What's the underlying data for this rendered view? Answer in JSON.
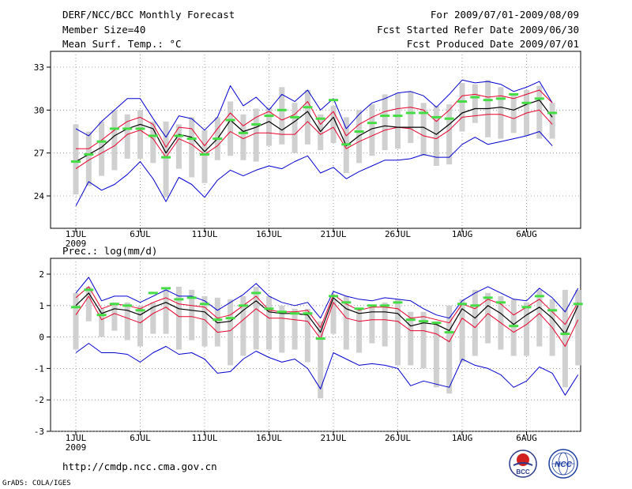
{
  "header": {
    "left_line1": "DERF/NCC/BCC Monthly Forecast",
    "left_line2": "Member Size=40",
    "right_line1": "For 2009/07/01-2009/08/09",
    "right_line2": "Fcst Started Refer Date 2009/06/30",
    "right_line3": "Fcst Produced Date 2009/07/01"
  },
  "footer": {
    "url": "http://cmdp.ncc.cma.gov.cn",
    "credit": "GrADS: COLA/IGES",
    "logo_bcc": "BCC",
    "logo_ncc": "NCC"
  },
  "colors": {
    "median": "#000000",
    "quartile": "#e8002a",
    "extreme": "#0000d0",
    "box": "#d0d0d0",
    "marker": "#44dd44"
  },
  "chart_data": [
    {
      "type": "box-spread",
      "title": "Mean Surf. Temp.: °C",
      "x_ticks": [
        "1JUL",
        "6JUL",
        "11JUL",
        "16JUL",
        "21JUL",
        "26JUL",
        "1AUG",
        "6AUG"
      ],
      "x_year": "2009",
      "days": 38,
      "ylim": [
        22,
        34
      ],
      "yticks": [
        "24",
        "27",
        "30",
        "33"
      ],
      "median": [
        26.4,
        26.9,
        27.4,
        28.2,
        28.7,
        29.0,
        28.7,
        27.0,
        28.3,
        28.1,
        27.1,
        28.0,
        29.3,
        28.5,
        28.8,
        29.2,
        28.6,
        29.2,
        29.9,
        28.5,
        29.5,
        27.5,
        28.2,
        28.7,
        28.9,
        28.8,
        28.8,
        28.8,
        28.3,
        29.0,
        29.8,
        30.1,
        30.1,
        30.2,
        30.0,
        30.4,
        30.7,
        29.5
      ],
      "q_high": [
        27.3,
        27.3,
        27.9,
        28.6,
        29.2,
        29.5,
        29.0,
        27.4,
        28.8,
        28.7,
        27.5,
        28.7,
        29.8,
        28.9,
        29.5,
        29.9,
        29.3,
        29.7,
        30.6,
        29.0,
        29.9,
        28.2,
        29.0,
        29.5,
        29.9,
        30.1,
        30.2,
        30.0,
        29.2,
        30.0,
        31.0,
        31.1,
        30.9,
        31.0,
        30.8,
        31.1,
        31.4,
        30.5
      ],
      "q_low": [
        25.9,
        26.5,
        27.0,
        27.5,
        28.3,
        28.6,
        28.0,
        26.7,
        28.0,
        27.6,
        26.9,
        27.5,
        28.5,
        28.0,
        28.4,
        28.4,
        28.3,
        28.3,
        29.2,
        28.3,
        28.8,
        27.3,
        27.8,
        28.2,
        28.6,
        28.8,
        28.7,
        28.2,
        28.0,
        28.6,
        29.5,
        29.6,
        29.7,
        29.7,
        29.4,
        29.8,
        30.0,
        29.0
      ],
      "max": [
        28.7,
        28.2,
        29.2,
        30.0,
        30.8,
        30.8,
        29.4,
        28.1,
        29.6,
        29.4,
        28.6,
        29.5,
        31.7,
        30.3,
        30.9,
        30.0,
        31.1,
        30.6,
        31.4,
        30.0,
        30.8,
        28.7,
        29.7,
        30.5,
        30.8,
        31.2,
        31.3,
        31.0,
        30.2,
        31.1,
        32.1,
        31.9,
        32.0,
        31.8,
        31.3,
        31.6,
        32.0,
        30.5
      ],
      "min": [
        23.3,
        25.0,
        24.4,
        24.8,
        25.5,
        26.4,
        25.2,
        23.6,
        25.3,
        24.8,
        23.9,
        25.1,
        25.8,
        25.4,
        25.8,
        26.1,
        25.9,
        26.4,
        26.8,
        25.6,
        26.0,
        25.2,
        25.7,
        26.1,
        26.5,
        26.5,
        26.6,
        26.9,
        26.7,
        26.7,
        27.6,
        28.1,
        27.6,
        27.8,
        28.0,
        28.2,
        28.5,
        27.5
      ],
      "box_high": [
        29.0,
        28.5,
        29.2,
        30.0,
        29.7,
        30.0,
        29.2,
        29.2,
        29.0,
        29.5,
        28.6,
        29.5,
        30.6,
        29.7,
        30.1,
        30.2,
        31.6,
        30.5,
        31.4,
        29.7,
        30.3,
        29.5,
        30.0,
        30.4,
        31.1,
        31.2,
        31.3,
        30.5,
        30.3,
        30.4,
        31.9,
        31.8,
        32.1,
        31.6,
        31.1,
        31.4,
        31.7,
        30.5
      ],
      "box_low": [
        24.1,
        24.7,
        25.4,
        25.8,
        26.6,
        26.6,
        26.3,
        23.9,
        25.9,
        25.3,
        24.9,
        26.5,
        26.8,
        26.5,
        26.4,
        27.5,
        27.6,
        27.0,
        27.6,
        27.2,
        27.7,
        25.6,
        26.3,
        26.8,
        27.2,
        27.3,
        27.7,
        26.8,
        26.1,
        26.2,
        28.5,
        29.1,
        28.1,
        28.0,
        28.4,
        28.2,
        28.0,
        28.0
      ],
      "marker": [
        26.4,
        26.9,
        27.8,
        28.7,
        28.7,
        28.7,
        28.2,
        26.7,
        28.2,
        28.0,
        26.9,
        28.0,
        29.3,
        28.4,
        29.0,
        29.6,
        30.0,
        29.5,
        30.2,
        29.4,
        30.7,
        27.6,
        28.5,
        29.1,
        29.6,
        29.6,
        29.8,
        29.8,
        29.5,
        29.4,
        30.6,
        30.9,
        30.7,
        30.8,
        31.1,
        30.5,
        30.8,
        29.8
      ]
    },
    {
      "type": "box-spread",
      "title": "Prec.: log(mm/d)",
      "x_ticks": [
        "1JUL",
        "6JUL",
        "11JUL",
        "16JUL",
        "21JUL",
        "26JUL",
        "1AUG",
        "6AUG"
      ],
      "x_year": "2009",
      "days": 38,
      "ylim": [
        -3,
        2.5
      ],
      "yticks": [
        "-3",
        "-2",
        "-1",
        "0",
        "1",
        "2"
      ],
      "median": [
        1.0,
        1.4,
        0.75,
        0.9,
        0.85,
        0.7,
        0.95,
        1.1,
        0.9,
        0.85,
        0.8,
        0.45,
        0.5,
        0.85,
        1.15,
        0.8,
        0.75,
        0.75,
        0.7,
        0.15,
        1.25,
        0.9,
        0.75,
        0.8,
        0.8,
        0.75,
        0.35,
        0.45,
        0.4,
        0.2,
        0.9,
        0.6,
        1.0,
        0.75,
        0.4,
        0.7,
        0.95,
        0.6,
        0.1,
        1.0
      ],
      "q_high": [
        1.25,
        1.6,
        0.9,
        1.05,
        1.0,
        0.9,
        1.1,
        1.25,
        1.05,
        1.0,
        0.95,
        0.6,
        0.7,
        1.0,
        1.3,
        0.85,
        0.8,
        0.8,
        0.85,
        0.3,
        1.35,
        1.05,
        0.85,
        0.95,
        0.95,
        0.9,
        0.6,
        0.65,
        0.55,
        0.45,
        1.05,
        0.9,
        1.2,
        1.05,
        0.7,
        0.95,
        1.2,
        0.8,
        0.4,
        1.1
      ],
      "q_low": [
        0.7,
        1.3,
        0.55,
        0.75,
        0.6,
        0.45,
        0.75,
        0.95,
        0.65,
        0.65,
        0.55,
        0.15,
        0.2,
        0.55,
        0.9,
        0.6,
        0.6,
        0.55,
        0.5,
        -0.05,
        1.1,
        0.6,
        0.5,
        0.55,
        0.55,
        0.5,
        0.2,
        0.2,
        0.1,
        -0.15,
        0.6,
        0.3,
        0.75,
        0.45,
        0.15,
        0.4,
        0.75,
        0.3,
        -0.3,
        0.55
      ],
      "max": [
        1.4,
        1.9,
        1.15,
        1.3,
        1.3,
        1.1,
        1.3,
        1.5,
        1.3,
        1.3,
        1.15,
        0.85,
        1.1,
        1.35,
        1.7,
        1.3,
        1.1,
        1.0,
        1.1,
        0.6,
        1.45,
        1.3,
        1.2,
        1.15,
        1.25,
        1.2,
        1.15,
        0.9,
        0.7,
        0.6,
        1.15,
        1.4,
        1.6,
        1.4,
        1.2,
        1.15,
        1.55,
        1.25,
        0.8,
        1.55
      ],
      "min": [
        -0.5,
        -0.2,
        -0.5,
        -0.5,
        -0.55,
        -0.8,
        -0.5,
        -0.3,
        -0.55,
        -0.5,
        -0.7,
        -1.15,
        -1.1,
        -0.7,
        -0.45,
        -0.65,
        -0.8,
        -0.7,
        -1.0,
        -1.65,
        -0.5,
        -0.7,
        -0.9,
        -0.85,
        -0.9,
        -1.0,
        -1.55,
        -1.4,
        -1.5,
        -1.6,
        -0.7,
        -0.9,
        -1.0,
        -1.2,
        -1.6,
        -1.4,
        -0.95,
        -1.15,
        -1.85,
        -1.2
      ],
      "box_high": [
        1.4,
        1.6,
        0.9,
        1.1,
        1.1,
        1.0,
        1.1,
        1.5,
        1.6,
        1.5,
        1.3,
        1.25,
        1.2,
        1.3,
        1.6,
        1.3,
        1.0,
        0.9,
        0.9,
        0.5,
        1.2,
        1.3,
        0.9,
        1.0,
        1.1,
        1.2,
        0.8,
        0.8,
        0.5,
        1.0,
        1.2,
        1.5,
        1.4,
        1.3,
        1.2,
        1.1,
        1.5,
        1.2,
        1.5,
        1.5
      ],
      "box_low": [
        -0.4,
        0.5,
        0.0,
        0.2,
        -0.1,
        -0.3,
        0.1,
        0.1,
        -0.4,
        -0.1,
        -0.3,
        -0.3,
        -0.9,
        -0.6,
        -0.4,
        -0.4,
        -0.5,
        -0.4,
        -0.8,
        -1.95,
        0.1,
        -0.4,
        -0.5,
        -0.2,
        -0.3,
        -0.9,
        -0.9,
        -1.0,
        -1.6,
        -1.8,
        -0.8,
        -0.6,
        -0.2,
        -0.4,
        -0.6,
        -0.6,
        -0.3,
        -0.6,
        -1.6,
        -0.9
      ],
      "marker": [
        0.95,
        1.5,
        0.7,
        1.05,
        1.0,
        0.85,
        1.4,
        1.55,
        1.2,
        1.25,
        1.05,
        0.55,
        0.6,
        1.0,
        1.4,
        0.9,
        0.8,
        0.75,
        0.75,
        -0.05,
        1.3,
        1.1,
        0.9,
        1.0,
        1.0,
        1.1,
        0.55,
        0.5,
        0.45,
        0.15,
        1.05,
        1.0,
        1.25,
        1.1,
        0.35,
        0.95,
        1.3,
        0.85,
        0.1,
        1.05
      ]
    }
  ]
}
